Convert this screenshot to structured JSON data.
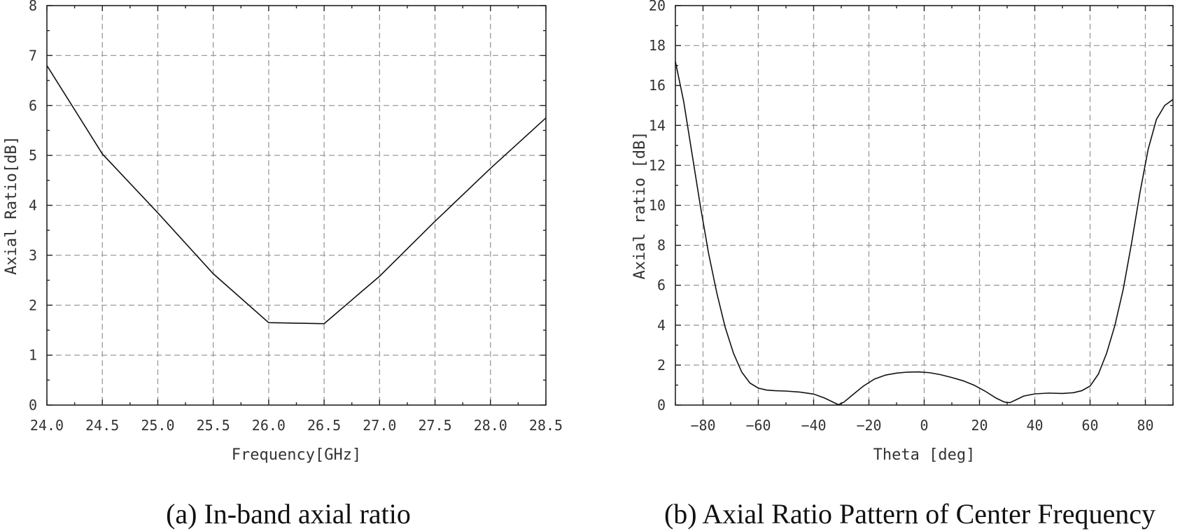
{
  "chart_data": [
    {
      "type": "line",
      "caption": "(a) In-band axial ratio",
      "xlabel": "Frequency[GHz]",
      "ylabel": "Axial Ratio[dB]",
      "xlim": [
        24.0,
        28.5
      ],
      "ylim": [
        0,
        8
      ],
      "xticks": [
        "24.0",
        "24.5",
        "25.0",
        "25.5",
        "26.0",
        "26.5",
        "27.0",
        "27.5",
        "28.0",
        "28.5"
      ],
      "yticks": [
        "0",
        "1",
        "2",
        "3",
        "4",
        "5",
        "6",
        "7",
        "8"
      ],
      "grid": true,
      "series": [
        {
          "name": "Axial Ratio",
          "x": [
            24.0,
            24.5,
            25.0,
            25.5,
            26.0,
            26.5,
            27.0,
            27.5,
            28.0,
            28.5
          ],
          "y": [
            6.8,
            5.03,
            3.85,
            2.63,
            1.65,
            1.63,
            2.58,
            3.68,
            4.74,
            5.75
          ]
        }
      ]
    },
    {
      "type": "line",
      "caption": "(b) Axial Ratio Pattern of Center Frequency",
      "xlabel": "Theta [deg]",
      "ylabel": "Axial ratio [dB]",
      "xlim": [
        -90,
        90
      ],
      "ylim": [
        0,
        20
      ],
      "xticks": [
        "−80",
        "−60",
        "−40",
        "−20",
        "0",
        "20",
        "40",
        "60",
        "80"
      ],
      "yticks": [
        "0",
        "2",
        "4",
        "6",
        "8",
        "10",
        "12",
        "14",
        "16",
        "18",
        "20"
      ],
      "grid": true,
      "series": [
        {
          "name": "Axial ratio",
          "x": [
            -90,
            -87,
            -84,
            -81,
            -78,
            -75,
            -72,
            -69,
            -66,
            -63,
            -60,
            -57,
            -54,
            -50,
            -45,
            -40,
            -36,
            -33,
            -31,
            -29,
            -26,
            -22,
            -18,
            -14,
            -10,
            -6,
            -2,
            2,
            6,
            10,
            14,
            18,
            22,
            26,
            29,
            31,
            33,
            36,
            40,
            45,
            50,
            54,
            57,
            60,
            63,
            66,
            69,
            72,
            75,
            78,
            81,
            84,
            87,
            90
          ],
          "y": [
            17.2,
            15.2,
            12.6,
            10.0,
            7.6,
            5.6,
            3.9,
            2.6,
            1.65,
            1.1,
            0.85,
            0.75,
            0.72,
            0.7,
            0.65,
            0.55,
            0.35,
            0.15,
            0.02,
            0.15,
            0.5,
            0.95,
            1.3,
            1.5,
            1.6,
            1.65,
            1.66,
            1.62,
            1.52,
            1.38,
            1.22,
            1.0,
            0.7,
            0.35,
            0.15,
            0.12,
            0.25,
            0.45,
            0.56,
            0.6,
            0.58,
            0.62,
            0.72,
            0.95,
            1.55,
            2.6,
            4.0,
            5.8,
            8.1,
            10.6,
            12.8,
            14.3,
            15.0,
            15.3
          ]
        }
      ]
    }
  ]
}
